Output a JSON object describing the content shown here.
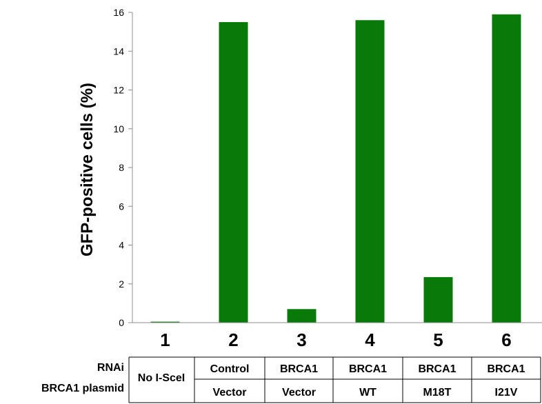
{
  "chart_data": {
    "type": "bar",
    "categories": [
      "1",
      "2",
      "3",
      "4",
      "5",
      "6"
    ],
    "values": [
      0.05,
      15.5,
      0.7,
      15.6,
      2.35,
      15.9
    ],
    "ylabel": "GFP-positive cells (%)",
    "xlabel": "",
    "ylim": [
      0,
      16
    ],
    "yticks": [
      "0",
      "2",
      "4",
      "6",
      "8",
      "10",
      "12",
      "14",
      "16"
    ],
    "grid": false,
    "legend": "none",
    "bar_color": "#087a08"
  },
  "table": {
    "row_labels": {
      "rnai": "RNAi",
      "plasmid": "BRCA1 plasmid"
    },
    "first_cell": "No I-SceI",
    "rnai": [
      "Control",
      "BRCA1",
      "BRCA1",
      "BRCA1",
      "BRCA1"
    ],
    "plasmid": [
      "Vector",
      "Vector",
      "WT",
      "M18T",
      "I21V"
    ]
  }
}
